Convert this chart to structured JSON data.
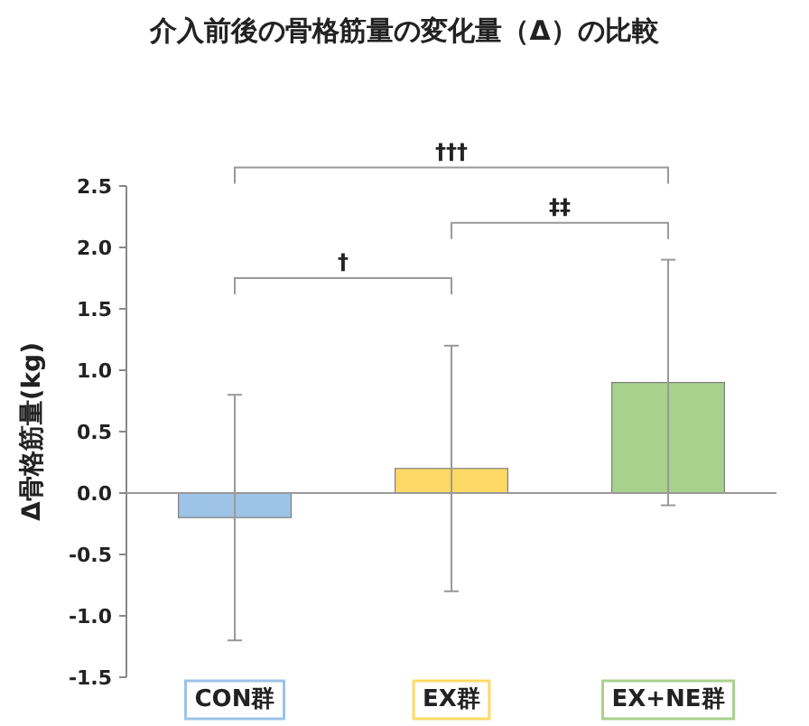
{
  "chart_data": {
    "type": "bar",
    "title": "介入前後の骨格筋量の変化量（Δ）の比較",
    "ylabel": "Δ骨格筋量(kg)",
    "categories": [
      "CON群",
      "EX群",
      "EX+NE群"
    ],
    "values": [
      -0.2,
      0.2,
      0.9
    ],
    "colors": [
      "#9dc3e6",
      "#ffd966",
      "#a9d18e"
    ],
    "errors": [
      1.0,
      1.0,
      1.0
    ],
    "ylim": [
      -1.5,
      2.5
    ],
    "yticks": [
      {
        "value": -1.5,
        "label": "-1.5"
      },
      {
        "value": -1.0,
        "label": "-1.0"
      },
      {
        "value": -0.5,
        "label": "-0.5"
      },
      {
        "value": 0,
        "label": "0.0"
      },
      {
        "value": 0.5,
        "label": "0.5"
      },
      {
        "value": 1.0,
        "label": "1.0"
      },
      {
        "value": 1.5,
        "label": "1.5"
      },
      {
        "value": 2.0,
        "label": "2.0"
      },
      {
        "value": 2.5,
        "label": "2.5"
      }
    ],
    "annotations": [
      "†",
      "‡‡",
      "†††"
    ]
  }
}
